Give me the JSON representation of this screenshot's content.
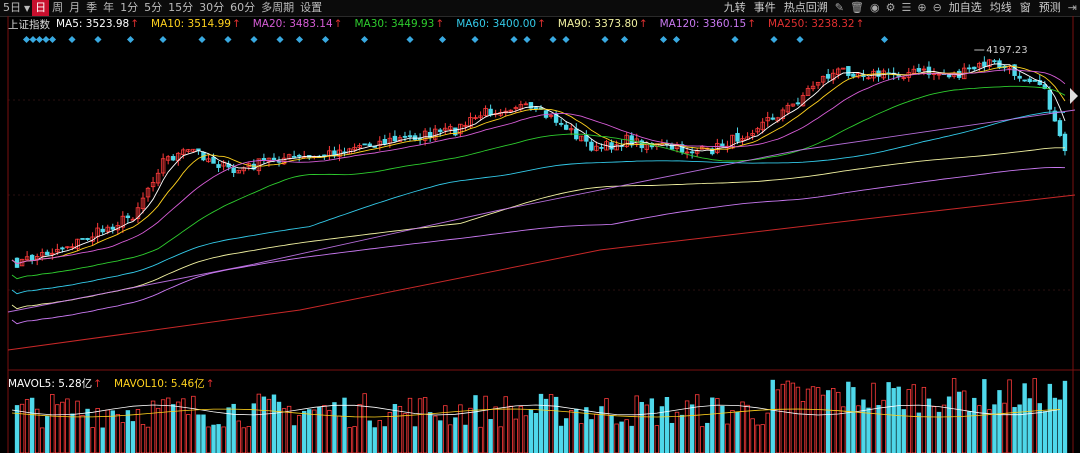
{
  "toolbar": {
    "periods": [
      "5日",
      "日",
      "周",
      "月",
      "季",
      "年",
      "1分",
      "5分",
      "15分",
      "30分",
      "60分",
      "多周期",
      "设置"
    ],
    "active_period": "日",
    "right_tabs": [
      "九转",
      "事件",
      "热点回溯",
      "加自选",
      "均线",
      "窗",
      "预测"
    ],
    "icons": [
      "pencil-icon",
      "trash-icon",
      "eye-icon",
      "settings-icon",
      "menu-icon",
      "plus-icon",
      "minus-icon",
      "expand-icon"
    ]
  },
  "legend": {
    "symbol": "上证指数",
    "items": [
      {
        "label": "MA5: 3523.98",
        "color": "#ffffff"
      },
      {
        "label": "MA10: 3514.99",
        "color": "#ffd21e"
      },
      {
        "label": "MA20: 3483.14",
        "color": "#d65cd6"
      },
      {
        "label": "MA30: 3449.93",
        "color": "#2ecc2e"
      },
      {
        "label": "MA60: 3400.00",
        "color": "#33c9e8"
      },
      {
        "label": "MA90: 3373.80",
        "color": "#f0f0a0"
      },
      {
        "label": "MA120: 3360.15",
        "color": "#c878f0"
      },
      {
        "label": "MA250: 3238.32",
        "color": "#e03030"
      }
    ]
  },
  "volume_legend": {
    "items": [
      {
        "label": "MAVOL5: 5.28亿",
        "color": "#ffffff"
      },
      {
        "label": "MAVOL10: 5.46亿",
        "color": "#ffd21e"
      }
    ]
  },
  "chart_data": {
    "type": "candlestick",
    "high_label": "4197.23",
    "ma_lines": [
      "MA5",
      "MA10",
      "MA20",
      "MA30",
      "MA60",
      "MA90",
      "MA120",
      "MA250"
    ]
  }
}
